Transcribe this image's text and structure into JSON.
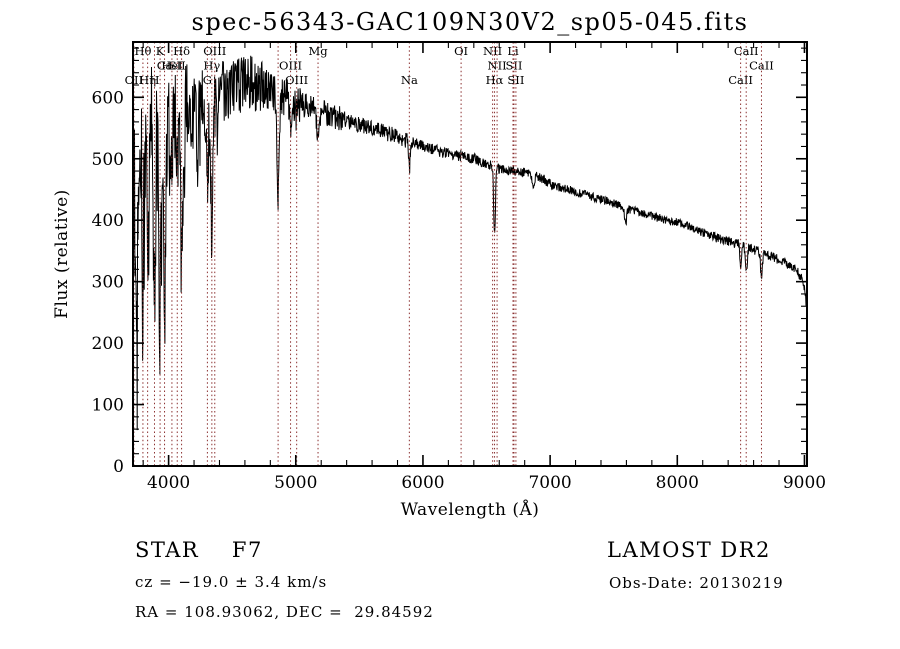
{
  "title": "spec-56343-GAC109N30V2_sp05-045.fits",
  "annotations": {
    "object_type": "STAR    F7",
    "survey": "LAMOST DR2",
    "cz": "cz = −19.0 ± 3.4 km/s",
    "obs_date": "Obs-Date: 20130219",
    "ra_dec": "RA = 108.93062, DEC =  29.84592"
  },
  "chart_data": {
    "type": "line",
    "title": "spec-56343-GAC109N30V2_sp05-045.fits",
    "xlabel": "Wavelength (Å)",
    "ylabel": "Flux (relative)",
    "xlim": [
      3720,
      9020
    ],
    "ylim": [
      0,
      690
    ],
    "xticks": [
      4000,
      5000,
      6000,
      7000,
      8000,
      9000
    ],
    "yticks": [
      0,
      100,
      200,
      300,
      400,
      500,
      600
    ],
    "x_minor_step": 200,
    "y_minor_step": 20,
    "grid": false,
    "legend": "none",
    "line_color": "#000000",
    "marker_color": "#8B3030",
    "axis_color": "#000000",
    "spectral_lines": [
      {
        "wavelength": 3727,
        "label": "OII",
        "row": 3
      },
      {
        "wavelength": 3798,
        "label": "Hθ",
        "row": 1
      },
      {
        "wavelength": 3835,
        "label": "Hη",
        "row": 3
      },
      {
        "wavelength": 3889,
        "label": "H",
        "row": 3
      },
      {
        "wavelength": 3933,
        "label": "K",
        "row": 1
      },
      {
        "wavelength": 3968,
        "label": "Ca",
        "row": 2
      },
      {
        "wavelength": 4026,
        "label": "HeI",
        "row": 2
      },
      {
        "wavelength": 4068,
        "label": "SII",
        "row": 2
      },
      {
        "wavelength": 4102,
        "label": "Hδ",
        "row": 1
      },
      {
        "wavelength": 4305,
        "label": "G",
        "row": 3
      },
      {
        "wavelength": 4340,
        "label": "Hγ",
        "row": 2
      },
      {
        "wavelength": 4363,
        "label": "OIII",
        "row": 1
      },
      {
        "wavelength": 4861,
        "label": "",
        "row": 0
      },
      {
        "wavelength": 4959,
        "label": "OIII",
        "row": 2
      },
      {
        "wavelength": 5007,
        "label": "OIII",
        "row": 3
      },
      {
        "wavelength": 5175,
        "label": "Mg",
        "row": 1
      },
      {
        "wavelength": 5893,
        "label": "Na",
        "row": 3
      },
      {
        "wavelength": 6300,
        "label": "OI",
        "row": 1
      },
      {
        "wavelength": 6548,
        "label": "NII",
        "row": 1
      },
      {
        "wavelength": 6563,
        "label": "Hα",
        "row": 3
      },
      {
        "wavelength": 6583,
        "label": "NII",
        "row": 2
      },
      {
        "wavelength": 6708,
        "label": "Li",
        "row": 1
      },
      {
        "wavelength": 6716,
        "label": "SII",
        "row": 2
      },
      {
        "wavelength": 6731,
        "label": "SII",
        "row": 3
      },
      {
        "wavelength": 8498,
        "label": "CaII",
        "row": 3
      },
      {
        "wavelength": 8542,
        "label": "CaII",
        "row": 1
      },
      {
        "wavelength": 8662,
        "label": "CaII",
        "row": 2
      }
    ],
    "continuum": [
      [
        3720,
        460
      ],
      [
        3740,
        500
      ],
      [
        3760,
        515
      ],
      [
        3800,
        532
      ],
      [
        3850,
        542
      ],
      [
        3900,
        549
      ],
      [
        3950,
        554
      ],
      [
        4000,
        560
      ],
      [
        4100,
        572
      ],
      [
        4200,
        582
      ],
      [
        4300,
        592
      ],
      [
        4400,
        602
      ],
      [
        4500,
        614
      ],
      [
        4600,
        622
      ],
      [
        4650,
        624
      ],
      [
        4700,
        620
      ],
      [
        4750,
        616
      ],
      [
        4800,
        612
      ],
      [
        4900,
        602
      ],
      [
        5000,
        592
      ],
      [
        5100,
        585
      ],
      [
        5200,
        577
      ],
      [
        5300,
        569
      ],
      [
        5400,
        562
      ],
      [
        5500,
        555
      ],
      [
        5600,
        549
      ],
      [
        5700,
        543
      ],
      [
        5800,
        536
      ],
      [
        5900,
        528
      ],
      [
        6000,
        521
      ],
      [
        6100,
        514
      ],
      [
        6200,
        508
      ],
      [
        6300,
        505
      ],
      [
        6400,
        500
      ],
      [
        6500,
        492
      ],
      [
        6600,
        484
      ],
      [
        6700,
        480
      ],
      [
        6800,
        478
      ],
      [
        6900,
        472
      ],
      [
        7000,
        460
      ],
      [
        7100,
        452
      ],
      [
        7200,
        446
      ],
      [
        7300,
        440
      ],
      [
        7400,
        434
      ],
      [
        7500,
        427
      ],
      [
        7600,
        419
      ],
      [
        7700,
        413
      ],
      [
        7800,
        407
      ],
      [
        7900,
        401
      ],
      [
        8000,
        396
      ],
      [
        8100,
        389
      ],
      [
        8200,
        380
      ],
      [
        8300,
        372
      ],
      [
        8400,
        366
      ],
      [
        8500,
        360
      ],
      [
        8600,
        352
      ],
      [
        8700,
        345
      ],
      [
        8800,
        336
      ],
      [
        8900,
        325
      ],
      [
        8950,
        314
      ],
      [
        8990,
        300
      ],
      [
        9005,
        287
      ],
      [
        9012,
        268
      ],
      [
        9018,
        252
      ]
    ],
    "noise_regions": [
      [
        3720,
        3950,
        120
      ],
      [
        3950,
        4150,
        85
      ],
      [
        4150,
        4450,
        60
      ],
      [
        4450,
        4750,
        45
      ],
      [
        4750,
        5050,
        32
      ],
      [
        5050,
        5400,
        20
      ],
      [
        5400,
        5900,
        13
      ],
      [
        5900,
        6500,
        9
      ],
      [
        6500,
        7200,
        8
      ],
      [
        7200,
        8200,
        7
      ],
      [
        8200,
        9021,
        8
      ]
    ],
    "absorption_lines": [
      {
        "center": 3750,
        "depth": 250,
        "sigma": 9
      },
      {
        "center": 3798,
        "depth": 220,
        "sigma": 7
      },
      {
        "center": 3835,
        "depth": 260,
        "sigma": 7
      },
      {
        "center": 3889,
        "depth": 270,
        "sigma": 8
      },
      {
        "center": 3933,
        "depth": 310,
        "sigma": 9
      },
      {
        "center": 3968,
        "depth": 290,
        "sigma": 9
      },
      {
        "center": 4026,
        "depth": 90,
        "sigma": 6
      },
      {
        "center": 4068,
        "depth": 80,
        "sigma": 6
      },
      {
        "center": 4102,
        "depth": 250,
        "sigma": 9
      },
      {
        "center": 4226,
        "depth": 80,
        "sigma": 6
      },
      {
        "center": 4305,
        "depth": 110,
        "sigma": 9
      },
      {
        "center": 4340,
        "depth": 220,
        "sigma": 8
      },
      {
        "center": 4383,
        "depth": 90,
        "sigma": 6
      },
      {
        "center": 4861,
        "depth": 165,
        "sigma": 9
      },
      {
        "center": 4959,
        "depth": 30,
        "sigma": 6
      },
      {
        "center": 5007,
        "depth": 25,
        "sigma": 6
      },
      {
        "center": 5175,
        "depth": 50,
        "sigma": 10
      },
      {
        "center": 5893,
        "depth": 42,
        "sigma": 7
      },
      {
        "center": 6563,
        "depth": 112,
        "sigma": 7
      },
      {
        "center": 6870,
        "depth": 22,
        "sigma": 8
      },
      {
        "center": 7594,
        "depth": 26,
        "sigma": 8
      },
      {
        "center": 8498,
        "depth": 34,
        "sigma": 6
      },
      {
        "center": 8542,
        "depth": 45,
        "sigma": 7
      },
      {
        "center": 8662,
        "depth": 40,
        "sigma": 7
      }
    ],
    "noise_seed": 20130219,
    "samples": 1750,
    "spike_region": [
      3720,
      4250
    ],
    "spike_prob": 0.09,
    "spike_mult": 2.0
  }
}
